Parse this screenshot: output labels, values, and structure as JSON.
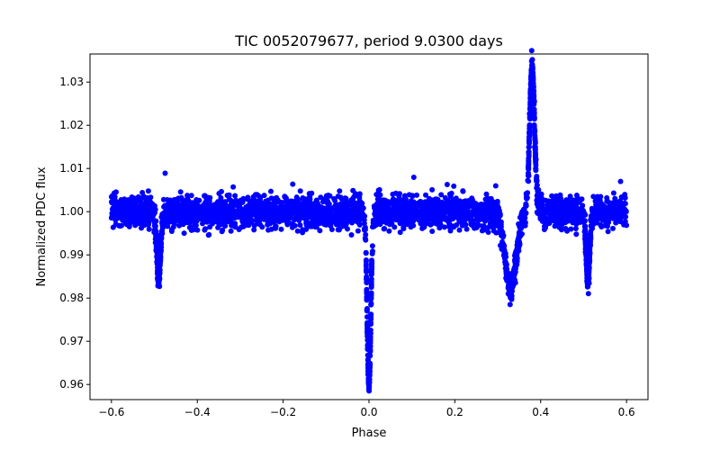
{
  "chart_data": {
    "type": "scatter",
    "title": "TIC 0052079677, period 9.0300 days",
    "xlabel": "Phase",
    "ylabel": "Normalized PDC flux",
    "xlim": [
      -0.65,
      0.65
    ],
    "ylim": [
      0.9565,
      1.0365
    ],
    "xticks": [
      -0.6,
      -0.4,
      -0.2,
      0.0,
      0.2,
      0.4,
      0.6
    ],
    "xtick_labels": [
      "−0.6",
      "−0.4",
      "−0.2",
      "0.0",
      "0.2",
      "0.4",
      "0.6"
    ],
    "yticks": [
      0.96,
      0.97,
      0.98,
      0.99,
      1.0,
      1.01,
      1.02,
      1.03
    ],
    "ytick_labels": [
      "0.96",
      "0.97",
      "0.98",
      "0.99",
      "1.00",
      "1.01",
      "1.02",
      "1.03"
    ],
    "grid": false,
    "marker_color": "#0000ff",
    "series": [
      {
        "phase_range": [
          -0.6,
          0.6
        ],
        "baseline_flux": 1.0,
        "scatter_half_width": 0.004,
        "features": [
          {
            "phase": -0.49,
            "min_flux": 0.984
          },
          {
            "phase": 0.0,
            "min_flux": 0.96
          },
          {
            "phase": 0.51,
            "min_flux": 0.984
          },
          {
            "phase": 0.33,
            "min_flux": 0.982
          },
          {
            "phase": 0.38,
            "max_flux": 1.0335
          }
        ]
      }
    ]
  }
}
